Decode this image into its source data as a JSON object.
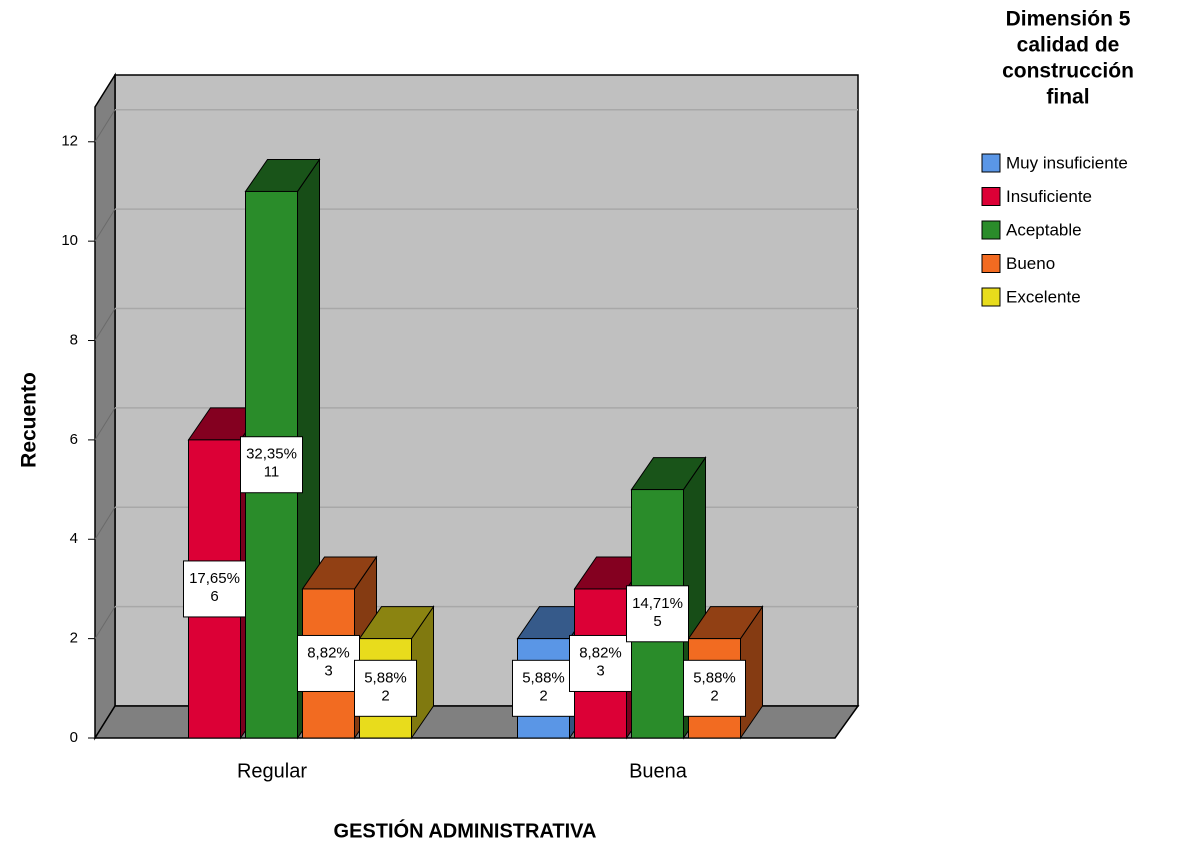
{
  "chart_data": {
    "type": "bar3d",
    "x_label": "GESTIÓN ADMINISTRATIVA",
    "y_label": "Recuento",
    "legend_title": [
      "Dimensión 5",
      "calidad de",
      "construcción",
      "final"
    ],
    "categories": [
      "Regular",
      "Buena"
    ],
    "series": [
      {
        "name": "Muy insuficiente",
        "color": "#5a96e6",
        "values": [
          null,
          2
        ],
        "percent_labels": [
          null,
          "5,88%"
        ]
      },
      {
        "name": "Insuficiente",
        "color": "#dc0036",
        "values": [
          6,
          3
        ],
        "percent_labels": [
          "17,65%",
          "8,82%"
        ]
      },
      {
        "name": "Aceptable",
        "color": "#2a8c2a",
        "values": [
          11,
          5
        ],
        "percent_labels": [
          "32,35%",
          "14,71%"
        ]
      },
      {
        "name": "Bueno",
        "color": "#f26b21",
        "values": [
          3,
          2
        ],
        "percent_labels": [
          "8,82%",
          "5,88%"
        ]
      },
      {
        "name": "Excelente",
        "color": "#e8dc1c",
        "values": [
          2,
          null
        ],
        "percent_labels": [
          "5,88%",
          null
        ]
      }
    ],
    "ylim": [
      0,
      12.7
    ],
    "yticks": [
      0,
      2,
      4,
      6,
      8,
      10,
      12
    ],
    "grid": true,
    "legend": "right"
  }
}
